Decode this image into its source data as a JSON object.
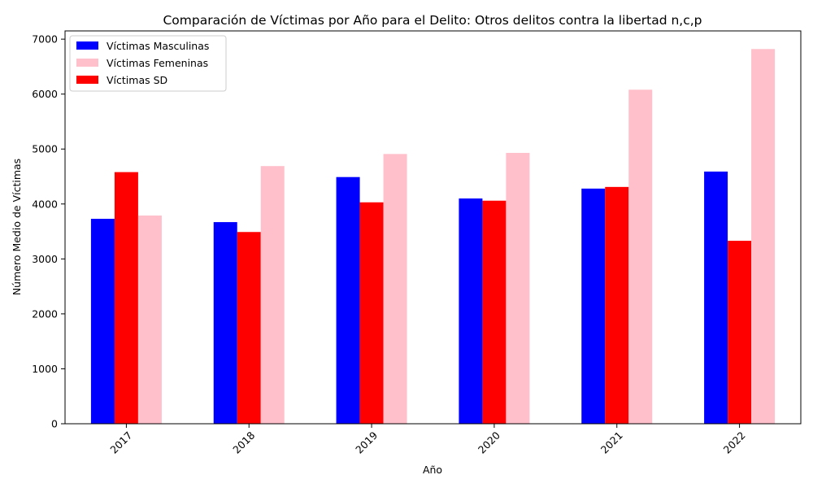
{
  "chart_data": {
    "type": "bar",
    "title": "Comparación de Víctimas por Año para el Delito: Otros delitos contra la libertad n,c,p",
    "xlabel": "Año",
    "ylabel": "Número Medio de Víctimas",
    "categories": [
      "2017",
      "2018",
      "2019",
      "2020",
      "2021",
      "2022"
    ],
    "ylim": [
      0,
      7150
    ],
    "yticks": [
      0,
      1000,
      2000,
      3000,
      4000,
      5000,
      6000,
      7000
    ],
    "grid": false,
    "legend_position": "top-left",
    "series": [
      {
        "name": "Víctimas Masculinas",
        "color": "#0000ff",
        "values": [
          3730,
          3670,
          4490,
          4100,
          4280,
          4590
        ]
      },
      {
        "name": "Víctimas SD",
        "color": "#ff0000",
        "values": [
          4580,
          3490,
          4030,
          4060,
          4310,
          3330
        ]
      },
      {
        "name": "Víctimas Femeninas",
        "color": "#ffc0cb",
        "values": [
          3790,
          4690,
          4910,
          4930,
          6080,
          6820
        ]
      }
    ],
    "legend_order": [
      "Víctimas Masculinas",
      "Víctimas Femeninas",
      "Víctimas SD"
    ]
  }
}
